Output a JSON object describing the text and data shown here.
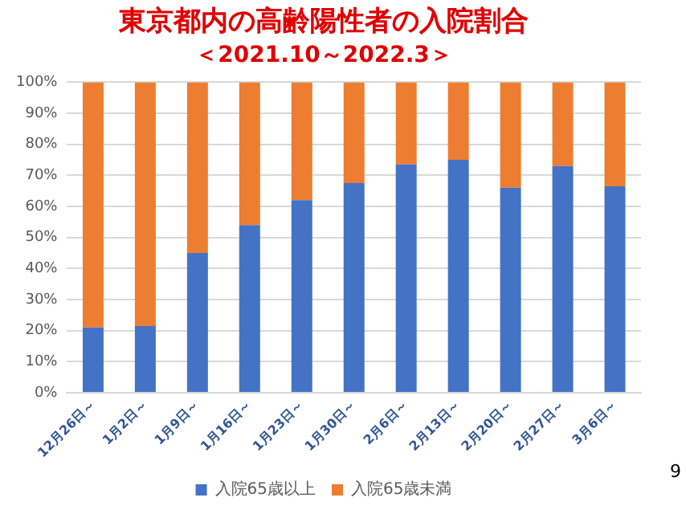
{
  "chart_data": {
    "type": "bar",
    "stacked": true,
    "title": "東京都内の高齢陽性者の入院割合",
    "subtitle": "＜2021.10～2022.3＞",
    "categories": [
      "12月26日～",
      "1月2日～",
      "1月9日～",
      "1月16日～",
      "1月23日～",
      "1月30日～",
      "2月6日～",
      "2月13日～",
      "2月20日～",
      "2月27日～",
      "3月6日～"
    ],
    "series": [
      {
        "name": "入院65歳以上",
        "color": "#4472c4",
        "values": [
          21,
          21.5,
          45,
          54,
          62,
          67.5,
          73.5,
          75,
          66,
          73,
          66.5
        ]
      },
      {
        "name": "入院65歳未満",
        "color": "#ed7d31",
        "values": [
          79,
          78.5,
          55,
          46,
          38,
          32.5,
          26.5,
          25,
          34,
          27,
          33.5
        ]
      }
    ],
    "ylim": [
      0,
      100
    ],
    "yticks": [
      {
        "value": 0,
        "label": "0%"
      },
      {
        "value": 10,
        "label": "10%"
      },
      {
        "value": 20,
        "label": "20%"
      },
      {
        "value": 30,
        "label": "30%"
      },
      {
        "value": 40,
        "label": "40%"
      },
      {
        "value": 50,
        "label": "50%"
      },
      {
        "value": 60,
        "label": "60%"
      },
      {
        "value": 70,
        "label": "70%"
      },
      {
        "value": 80,
        "label": "80%"
      },
      {
        "value": 90,
        "label": "90%"
      },
      {
        "value": 100,
        "label": "100%"
      }
    ],
    "grid": "y",
    "legend": "bottom",
    "annotations": [
      "9"
    ]
  }
}
